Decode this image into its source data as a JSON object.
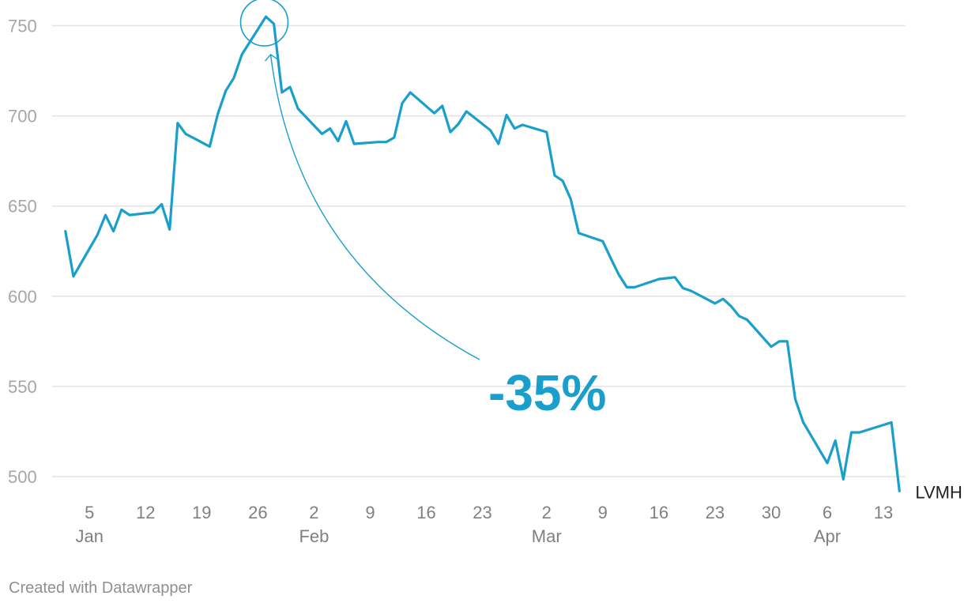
{
  "chart_data": {
    "type": "line",
    "title": "",
    "xlabel": "",
    "ylabel": "",
    "ylim": [
      490,
      758
    ],
    "y_ticks": [
      500,
      550,
      600,
      650,
      700,
      750
    ],
    "grid": true,
    "legend": "none",
    "x_date_range": [
      "2020-01-01",
      "2020-04-16"
    ],
    "x_ticks": [
      {
        "date": "2020-01-05",
        "label": "5",
        "month": "Jan"
      },
      {
        "date": "2020-01-12",
        "label": "12",
        "month": ""
      },
      {
        "date": "2020-01-19",
        "label": "19",
        "month": ""
      },
      {
        "date": "2020-01-26",
        "label": "26",
        "month": ""
      },
      {
        "date": "2020-02-02",
        "label": "2",
        "month": "Feb"
      },
      {
        "date": "2020-02-09",
        "label": "9",
        "month": ""
      },
      {
        "date": "2020-02-16",
        "label": "16",
        "month": ""
      },
      {
        "date": "2020-02-23",
        "label": "23",
        "month": ""
      },
      {
        "date": "2020-03-02",
        "label": "2",
        "month": "Mar"
      },
      {
        "date": "2020-03-09",
        "label": "9",
        "month": ""
      },
      {
        "date": "2020-03-16",
        "label": "16",
        "month": ""
      },
      {
        "date": "2020-03-23",
        "label": "23",
        "month": ""
      },
      {
        "date": "2020-03-30",
        "label": "30",
        "month": ""
      },
      {
        "date": "2020-04-06",
        "label": "6",
        "month": "Apr"
      },
      {
        "date": "2020-04-13",
        "label": "13",
        "month": ""
      }
    ],
    "series": [
      {
        "name": "LVMH",
        "color": "#1a9fcc",
        "points": [
          [
            "2020-01-02",
            636
          ],
          [
            "2020-01-03",
            611
          ],
          [
            "2020-01-06",
            634
          ],
          [
            "2020-01-07",
            645
          ],
          [
            "2020-01-08",
            636
          ],
          [
            "2020-01-09",
            648
          ],
          [
            "2020-01-10",
            645
          ],
          [
            "2020-01-13",
            646.5
          ],
          [
            "2020-01-14",
            651
          ],
          [
            "2020-01-15",
            637
          ],
          [
            "2020-01-16",
            696
          ],
          [
            "2020-01-17",
            690
          ],
          [
            "2020-01-20",
            683
          ],
          [
            "2020-01-21",
            701
          ],
          [
            "2020-01-22",
            714
          ],
          [
            "2020-01-23",
            721
          ],
          [
            "2020-01-24",
            734
          ],
          [
            "2020-01-27",
            755
          ],
          [
            "2020-01-28",
            751
          ],
          [
            "2020-01-29",
            713
          ],
          [
            "2020-01-30",
            716
          ],
          [
            "2020-01-31",
            704
          ],
          [
            "2020-02-03",
            690
          ],
          [
            "2020-02-04",
            693
          ],
          [
            "2020-02-05",
            686
          ],
          [
            "2020-02-06",
            697
          ],
          [
            "2020-02-07",
            684.5
          ],
          [
            "2020-02-10",
            685.5
          ],
          [
            "2020-02-11",
            685.5
          ],
          [
            "2020-02-12",
            688
          ],
          [
            "2020-02-13",
            707
          ],
          [
            "2020-02-14",
            713
          ],
          [
            "2020-02-17",
            701.5
          ],
          [
            "2020-02-18",
            705.5
          ],
          [
            "2020-02-19",
            691
          ],
          [
            "2020-02-20",
            695.5
          ],
          [
            "2020-02-21",
            702.5
          ],
          [
            "2020-02-24",
            692
          ],
          [
            "2020-02-25",
            684.5
          ],
          [
            "2020-02-26",
            700.5
          ],
          [
            "2020-02-27",
            693
          ],
          [
            "2020-02-28",
            695
          ],
          [
            "2020-03-02",
            691
          ],
          [
            "2020-03-03",
            667
          ],
          [
            "2020-03-04",
            664
          ],
          [
            "2020-03-05",
            654
          ],
          [
            "2020-03-06",
            635
          ],
          [
            "2020-03-09",
            630.5
          ],
          [
            "2020-03-10",
            621
          ],
          [
            "2020-03-11",
            612
          ],
          [
            "2020-03-12",
            605
          ],
          [
            "2020-03-13",
            605
          ],
          [
            "2020-03-16",
            609.5
          ],
          [
            "2020-03-17",
            610
          ],
          [
            "2020-03-18",
            610.5
          ],
          [
            "2020-03-19",
            604.5
          ],
          [
            "2020-03-20",
            603
          ],
          [
            "2020-03-23",
            596
          ],
          [
            "2020-03-24",
            598.5
          ],
          [
            "2020-03-25",
            594.5
          ],
          [
            "2020-03-26",
            589
          ],
          [
            "2020-03-27",
            587
          ],
          [
            "2020-03-30",
            572
          ],
          [
            "2020-03-31",
            575
          ],
          [
            "2020-04-01",
            575
          ],
          [
            "2020-04-02",
            543
          ],
          [
            "2020-04-03",
            530
          ],
          [
            "2020-04-06",
            507.5
          ],
          [
            "2020-04-07",
            520
          ],
          [
            "2020-04-08",
            498.5
          ],
          [
            "2020-04-09",
            524.5
          ],
          [
            "2020-04-10",
            524.5
          ],
          [
            "2020-04-14",
            530
          ],
          [
            "2020-04-15",
            492
          ]
        ]
      }
    ],
    "annotations": [
      {
        "text": "-35%",
        "color": "#1a9fcc",
        "highlight_point": "2020-01-27"
      }
    ]
  },
  "footer": {
    "credit": "Created with Datawrapper"
  }
}
